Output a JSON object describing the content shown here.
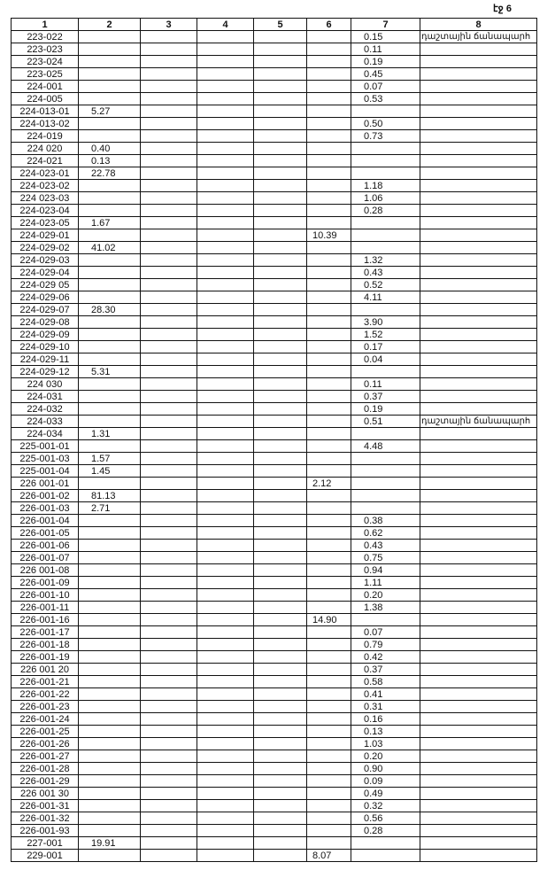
{
  "page_label": "էջ 6",
  "columns": [
    "1",
    "2",
    "3",
    "4",
    "5",
    "6",
    "7",
    "8"
  ],
  "rows": [
    [
      "223-022",
      "",
      "",
      "",
      "",
      "",
      "0.15",
      "դաշտային ճանապարհ"
    ],
    [
      "223-023",
      "",
      "",
      "",
      "",
      "",
      "0.11",
      ""
    ],
    [
      "223-024",
      "",
      "",
      "",
      "",
      "",
      "0.19",
      ""
    ],
    [
      "223-025",
      "",
      "",
      "",
      "",
      "",
      "0.45",
      ""
    ],
    [
      "224-001",
      "",
      "",
      "",
      "",
      "",
      "0.07",
      ""
    ],
    [
      "224-005",
      "",
      "",
      "",
      "",
      "",
      "0.53",
      ""
    ],
    [
      "224-013-01",
      "5.27",
      "",
      "",
      "",
      "",
      "",
      ""
    ],
    [
      "224-013-02",
      "",
      "",
      "",
      "",
      "",
      "0.50",
      ""
    ],
    [
      "224-019",
      "",
      "",
      "",
      "",
      "",
      "0.73",
      ""
    ],
    [
      "224 020",
      "0.40",
      "",
      "",
      "",
      "",
      "",
      ""
    ],
    [
      "224-021",
      "0.13",
      "",
      "",
      "",
      "",
      "",
      ""
    ],
    [
      "224-023-01",
      "22.78",
      "",
      "",
      "",
      "",
      "",
      ""
    ],
    [
      "224-023-02",
      "",
      "",
      "",
      "",
      "",
      "1.18",
      ""
    ],
    [
      "224 023-03",
      "",
      "",
      "",
      "",
      "",
      "1.06",
      ""
    ],
    [
      "224-023-04",
      "",
      "",
      "",
      "",
      "",
      "0.28",
      ""
    ],
    [
      "224-023-05",
      "1.67",
      "",
      "",
      "",
      "",
      "",
      ""
    ],
    [
      "224-029-01",
      "",
      "",
      "",
      "",
      "10.39",
      "",
      ""
    ],
    [
      "224-029-02",
      "41.02",
      "",
      "",
      "",
      "",
      "",
      ""
    ],
    [
      "224-029-03",
      "",
      "",
      "",
      "",
      "",
      "1.32",
      ""
    ],
    [
      "224-029-04",
      "",
      "",
      "",
      "",
      "",
      "0.43",
      ""
    ],
    [
      "224-029 05",
      "",
      "",
      "",
      "",
      "",
      "0.52",
      ""
    ],
    [
      "224-029-06",
      "",
      "",
      "",
      "",
      "",
      "4.11",
      ""
    ],
    [
      "224-029-07",
      "28.30",
      "",
      "",
      "",
      "",
      "",
      ""
    ],
    [
      "224-029-08",
      "",
      "",
      "",
      "",
      "",
      "3.90",
      ""
    ],
    [
      "224-029-09",
      "",
      "",
      "",
      "",
      "",
      "1.52",
      ""
    ],
    [
      "224-029-10",
      "",
      "",
      "",
      "",
      "",
      "0.17",
      ""
    ],
    [
      "224-029-11",
      "",
      "",
      "",
      "",
      "",
      "0.04",
      ""
    ],
    [
      "224-029-12",
      "5.31",
      "",
      "",
      "",
      "",
      "",
      ""
    ],
    [
      "224 030",
      "",
      "",
      "",
      "",
      "",
      "0.11",
      ""
    ],
    [
      "224-031",
      "",
      "",
      "",
      "",
      "",
      "0.37",
      ""
    ],
    [
      "224-032",
      "",
      "",
      "",
      "",
      "",
      "0.19",
      ""
    ],
    [
      "224-033",
      "",
      "",
      "",
      "",
      "",
      "0.51",
      "դաշտային ճանապարհ"
    ],
    [
      "224-034",
      "1.31",
      "",
      "",
      "",
      "",
      "",
      ""
    ],
    [
      "225-001-01",
      "",
      "",
      "",
      "",
      "",
      "4.48",
      ""
    ],
    [
      "225-001-03",
      "1.57",
      "",
      "",
      "",
      "",
      "",
      ""
    ],
    [
      "225-001-04",
      "1.45",
      "",
      "",
      "",
      "",
      "",
      ""
    ],
    [
      "226 001-01",
      "",
      "",
      "",
      "",
      "2.12",
      "",
      ""
    ],
    [
      "226-001-02",
      "81.13",
      "",
      "",
      "",
      "",
      "",
      ""
    ],
    [
      "226-001-03",
      "2.71",
      "",
      "",
      "",
      "",
      "",
      ""
    ],
    [
      "226-001-04",
      "",
      "",
      "",
      "",
      "",
      "0.38",
      ""
    ],
    [
      "226-001-05",
      "",
      "",
      "",
      "",
      "",
      "0.62",
      ""
    ],
    [
      "226-001-06",
      "",
      "",
      "",
      "",
      "",
      "0.43",
      ""
    ],
    [
      "226-001-07",
      "",
      "",
      "",
      "",
      "",
      "0.75",
      ""
    ],
    [
      "226 001-08",
      "",
      "",
      "",
      "",
      "",
      "0.94",
      ""
    ],
    [
      "226-001-09",
      "",
      "",
      "",
      "",
      "",
      "1.11",
      ""
    ],
    [
      "226-001-10",
      "",
      "",
      "",
      "",
      "",
      "0.20",
      ""
    ],
    [
      "226-001-11",
      "",
      "",
      "",
      "",
      "",
      "1.38",
      ""
    ],
    [
      "226-001-16",
      "",
      "",
      "",
      "",
      "14.90",
      "",
      ""
    ],
    [
      "226-001-17",
      "",
      "",
      "",
      "",
      "",
      "0.07",
      ""
    ],
    [
      "226-001-18",
      "",
      "",
      "",
      "",
      "",
      "0.79",
      ""
    ],
    [
      "226-001-19",
      "",
      "",
      "",
      "",
      "",
      "0.42",
      ""
    ],
    [
      "226 001 20",
      "",
      "",
      "",
      "",
      "",
      "0.37",
      ""
    ],
    [
      "226-001-21",
      "",
      "",
      "",
      "",
      "",
      "0.58",
      ""
    ],
    [
      "226-001-22",
      "",
      "",
      "",
      "",
      "",
      "0.41",
      ""
    ],
    [
      "226-001-23",
      "",
      "",
      "",
      "",
      "",
      "0.31",
      ""
    ],
    [
      "226-001-24",
      "",
      "",
      "",
      "",
      "",
      "0.16",
      ""
    ],
    [
      "226-001-25",
      "",
      "",
      "",
      "",
      "",
      "0.13",
      ""
    ],
    [
      "226-001-26",
      "",
      "",
      "",
      "",
      "",
      "1.03",
      ""
    ],
    [
      "226-001-27",
      "",
      "",
      "",
      "",
      "",
      "0.20",
      ""
    ],
    [
      "226-001-28",
      "",
      "",
      "",
      "",
      "",
      "0.90",
      ""
    ],
    [
      "226-001-29",
      "",
      "",
      "",
      "",
      "",
      "0.09",
      ""
    ],
    [
      "226 001 30",
      "",
      "",
      "",
      "",
      "",
      "0.49",
      ""
    ],
    [
      "226-001-31",
      "",
      "",
      "",
      "",
      "",
      "0.32",
      ""
    ],
    [
      "226-001-32",
      "",
      "",
      "",
      "",
      "",
      "0.56",
      ""
    ],
    [
      "226-001-93",
      "",
      "",
      "",
      "",
      "",
      "0.28",
      ""
    ],
    [
      "227-001",
      "19.91",
      "",
      "",
      "",
      "",
      "",
      ""
    ],
    [
      "229-001",
      "",
      "",
      "",
      "",
      "8.07",
      "",
      ""
    ]
  ]
}
